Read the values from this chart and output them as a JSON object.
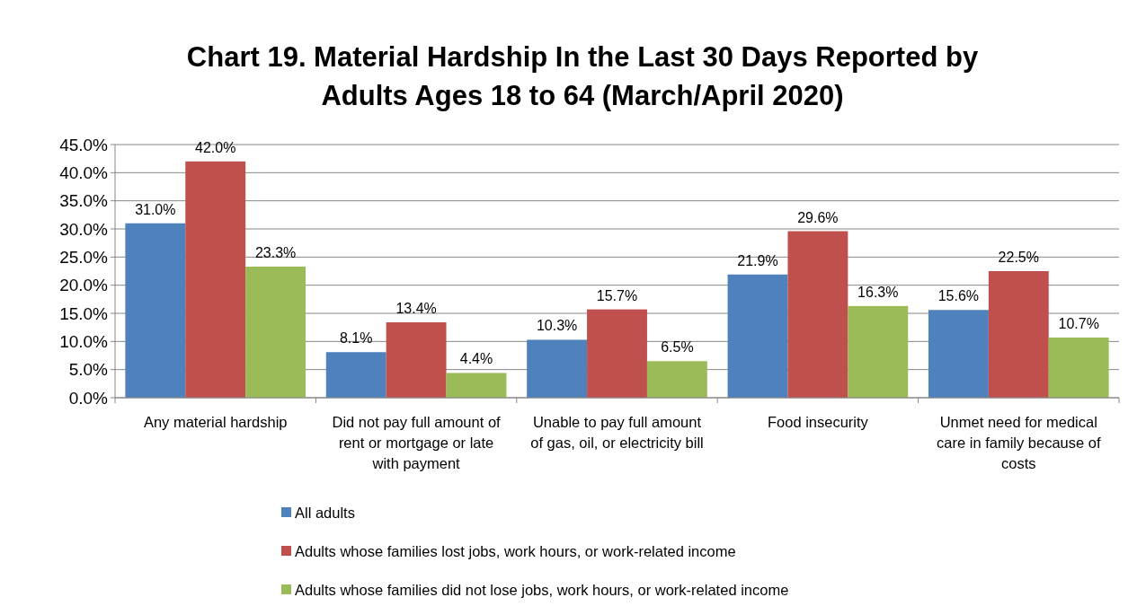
{
  "chart_data": {
    "type": "bar",
    "title": "Chart 19. Material Hardship In the Last 30 Days Reported by Adults Ages 18 to 64 (March/April 2020)",
    "categories": [
      "Any material hardship",
      "Did not pay full amount of rent or mortgage or late with payment",
      "Unable to pay full amount of gas, oil, or electricity bill",
      "Food insecurity",
      "Unmet need for medical care in family because of costs"
    ],
    "series": [
      {
        "name": "All adults",
        "color": "#4f81bd",
        "values": [
          31.0,
          8.1,
          10.3,
          21.9,
          15.6
        ],
        "value_labels": [
          "31.0%",
          "8.1%",
          "10.3%",
          "21.9%",
          "15.6%"
        ]
      },
      {
        "name": "Adults whose families lost jobs, work hours, or work-related income",
        "color": "#c0504d",
        "values": [
          42.0,
          13.4,
          15.7,
          29.6,
          22.5
        ],
        "value_labels": [
          "42.0%",
          "13.4%",
          "15.7%",
          "29.6%",
          "22.5%"
        ]
      },
      {
        "name": "Adults whose families did not lose jobs, work hours, or work-related income",
        "color": "#9bbb59",
        "values": [
          23.3,
          4.4,
          6.5,
          16.3,
          10.7
        ],
        "value_labels": [
          "23.3%",
          "4.4%",
          "6.5%",
          "16.3%",
          "10.7%"
        ]
      }
    ],
    "ylim": [
      0,
      45
    ],
    "yticks": [
      {
        "value": 0,
        "label": "0.0%"
      },
      {
        "value": 5,
        "label": "5.0%"
      },
      {
        "value": 10,
        "label": "10.0%"
      },
      {
        "value": 15,
        "label": "15.0%"
      },
      {
        "value": 20,
        "label": "20.0%"
      },
      {
        "value": 25,
        "label": "25.0%"
      },
      {
        "value": 30,
        "label": "30.0%"
      },
      {
        "value": 35,
        "label": "35.0%"
      },
      {
        "value": 40,
        "label": "40.0%"
      },
      {
        "value": 45,
        "label": "45.0%"
      }
    ],
    "grid": "y",
    "legend": "bottom"
  }
}
